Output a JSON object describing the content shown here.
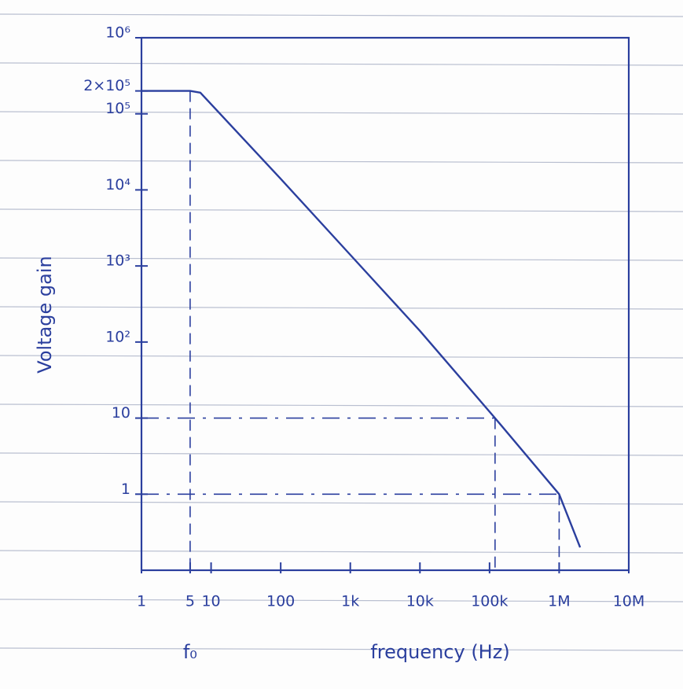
{
  "chart_data": {
    "type": "line",
    "x_label": "frequency (Hz)",
    "y_label": "Voltage gain",
    "annotation": "f₀",
    "x": [
      1,
      5,
      7,
      100,
      1000,
      10000,
      120000,
      1000000,
      2000000
    ],
    "values": [
      200000,
      200000,
      190000,
      14000,
      1400,
      140,
      10,
      1,
      0.2
    ],
    "color": "#2b3f9e",
    "x_log": true,
    "y_log": true,
    "xlim": [
      1,
      10000000
    ],
    "ylim": [
      0.1,
      1000000
    ],
    "xticks": [
      1,
      5,
      10,
      100,
      {
        "value": 1000,
        "label": "1k"
      },
      {
        "value": 10000,
        "label": "10k"
      },
      {
        "value": 100000,
        "label": "100k"
      },
      {
        "value": 1000000,
        "label": "1M"
      },
      {
        "value": 10000000,
        "label": "10M"
      }
    ],
    "yticks": [
      1,
      10,
      {
        "value": 100,
        "label": "10²"
      },
      {
        "value": 1000,
        "label": "10³"
      },
      {
        "value": 10000,
        "label": "10⁴"
      },
      {
        "value": 100000,
        "label": "10⁵"
      },
      {
        "value": 200000,
        "label": "2×10⁵"
      },
      {
        "value": 1000000,
        "label": "10⁶"
      }
    ]
  }
}
